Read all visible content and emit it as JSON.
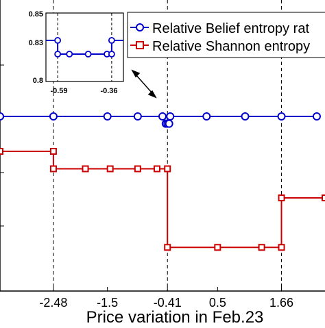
{
  "chart_data": {
    "type": "line",
    "xlabel": "Price variation in Feb.23",
    "x_ticks": [
      "-2.48",
      "-1.5",
      "-0.41",
      "0.5",
      "1.66"
    ],
    "x_tick_values": [
      -2.48,
      -1.5,
      -0.41,
      0.5,
      1.66
    ],
    "xlim": [
      -3.45,
      2.45
    ],
    "ylim": [
      0,
      1
    ],
    "grid": false,
    "vlines": [
      -2.48,
      -0.41,
      1.66
    ],
    "legend": {
      "position": "top-right",
      "entries": [
        "Relative Belief entropy rat",
        "Relative Shannon entropy"
      ]
    },
    "series": [
      {
        "name": "Relative Belief entropy rat",
        "color": "#0000cc",
        "marker": "circle",
        "x": [
          -3.45,
          -2.48,
          -1.5,
          -0.95,
          -0.5,
          -0.44,
          -0.41,
          -0.38,
          -0.36,
          0.3,
          1.0,
          1.66,
          2.3
        ],
        "y": [
          0.6,
          0.6,
          0.6,
          0.6,
          0.6,
          0.575,
          0.575,
          0.575,
          0.6,
          0.6,
          0.6,
          0.6,
          0.6
        ]
      },
      {
        "name": "Relative Shannon entropy",
        "color": "#cc0000",
        "marker": "square",
        "x": [
          -3.45,
          -2.48,
          -2.48,
          -1.9,
          -1.45,
          -0.95,
          -0.6,
          -0.41,
          -0.41,
          0.5,
          1.3,
          1.66,
          1.66,
          2.45
        ],
        "y": [
          0.48,
          0.48,
          0.42,
          0.42,
          0.42,
          0.42,
          0.42,
          0.42,
          0.15,
          0.15,
          0.15,
          0.15,
          0.32,
          0.32
        ]
      }
    ],
    "inset": {
      "y_ticks": [
        "0.85",
        "0.83",
        "0.8"
      ],
      "y_tick_values": [
        0.85,
        0.83,
        0.8
      ],
      "x_ticks": [
        "-0.59",
        "-0.36"
      ],
      "x_tick_values": [
        -0.59,
        -0.36
      ],
      "xlim": [
        -0.64,
        -0.31
      ],
      "ylim": [
        0.8,
        0.85
      ],
      "series": {
        "x": [
          -0.64,
          -0.59,
          -0.59,
          -0.54,
          -0.46,
          -0.38,
          -0.36,
          -0.36,
          -0.31
        ],
        "y": [
          0.83,
          0.83,
          0.82,
          0.82,
          0.82,
          0.82,
          0.82,
          0.83,
          0.83
        ]
      },
      "markers_x": [
        -0.59,
        -0.59,
        -0.54,
        -0.46,
        -0.38,
        -0.36,
        -0.36
      ],
      "markers_y": [
        0.83,
        0.82,
        0.82,
        0.82,
        0.82,
        0.82,
        0.83
      ]
    }
  }
}
